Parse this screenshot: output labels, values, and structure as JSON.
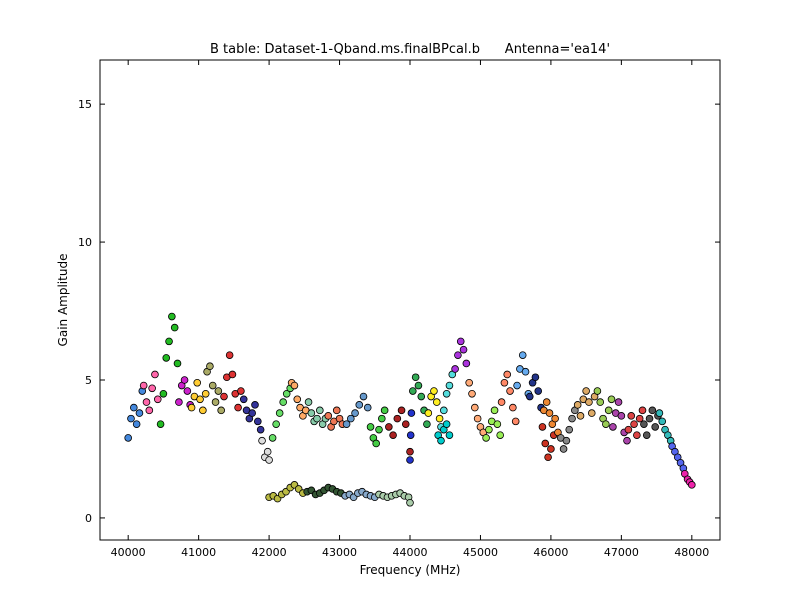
{
  "chart_data": {
    "type": "scatter",
    "title": "B table: Dataset-1-Qband.ms.finalBPcal.b      Antenna='ea14'",
    "xlabel": "Frequency (MHz)",
    "ylabel": "Gain Amplitude",
    "xlim": [
      39600,
      48400
    ],
    "ylim": [
      -0.8,
      16.6
    ],
    "xticks": [
      40000,
      41000,
      42000,
      43000,
      44000,
      45000,
      46000,
      47000,
      48000
    ],
    "yticks": [
      0,
      5,
      10,
      15
    ],
    "grid": false,
    "legend": "none",
    "marker": "circle",
    "marker_edge_color": "#000000",
    "series": [
      {
        "color": "#4488dd",
        "x": [
          40000,
          40040,
          40080,
          40120,
          40160,
          40200
        ],
        "y": [
          2.9,
          3.6,
          4.0,
          3.4,
          3.8,
          4.6
        ]
      },
      {
        "color": "#ff66aa",
        "x": [
          40220,
          40260,
          40300,
          40340,
          40380,
          40420
        ],
        "y": [
          4.8,
          4.2,
          3.9,
          4.7,
          5.2,
          4.3
        ]
      },
      {
        "color": "#22bb22",
        "x": [
          40460,
          40500,
          40540,
          40580,
          40620,
          40660,
          40700
        ],
        "y": [
          3.4,
          4.5,
          5.8,
          6.4,
          7.3,
          6.9,
          5.6
        ]
      },
      {
        "color": "#cc22cc",
        "x": [
          40720,
          40760,
          40800,
          40840,
          40880
        ],
        "y": [
          4.2,
          4.8,
          5.0,
          4.6,
          4.1
        ]
      },
      {
        "color": "#ffcc33",
        "x": [
          40900,
          40940,
          40980,
          41020,
          41060,
          41100
        ],
        "y": [
          4.0,
          4.4,
          4.9,
          4.3,
          3.9,
          4.5
        ]
      },
      {
        "color": "#aaaa66",
        "x": [
          41120,
          41160,
          41200,
          41240,
          41280,
          41320
        ],
        "y": [
          5.3,
          5.5,
          4.8,
          4.2,
          4.6,
          3.9
        ]
      },
      {
        "color": "#dd3333",
        "x": [
          41360,
          41400,
          41440,
          41480,
          41520,
          41560,
          41600
        ],
        "y": [
          4.4,
          5.1,
          5.9,
          5.2,
          4.5,
          4.0,
          4.6
        ]
      },
      {
        "color": "#333399",
        "x": [
          41640,
          41680,
          41720,
          41760,
          41800,
          41840,
          41880
        ],
        "y": [
          4.3,
          3.9,
          3.6,
          3.8,
          4.1,
          3.5,
          3.2
        ]
      },
      {
        "color": "#dddddd",
        "x": [
          41900,
          41940,
          41980,
          42000
        ],
        "y": [
          2.8,
          2.2,
          2.4,
          2.1
        ]
      },
      {
        "color": "#66dd66",
        "x": [
          42050,
          42100,
          42150,
          42200,
          42250,
          42300
        ],
        "y": [
          2.9,
          3.4,
          3.8,
          4.2,
          4.5,
          4.7
        ]
      },
      {
        "color": "#ffaa66",
        "x": [
          42320,
          42360,
          42400,
          42440,
          42480,
          42520
        ],
        "y": [
          4.9,
          4.8,
          4.3,
          4.0,
          3.7,
          3.9
        ]
      },
      {
        "color": "#88ccaa",
        "x": [
          42560,
          42600,
          42640,
          42680,
          42720,
          42760,
          42800
        ],
        "y": [
          4.2,
          3.8,
          3.5,
          3.6,
          3.9,
          3.4,
          3.6
        ]
      },
      {
        "color": "#ee7755",
        "x": [
          42840,
          42880,
          42920,
          42960,
          43000,
          43040
        ],
        "y": [
          3.7,
          3.3,
          3.5,
          3.9,
          3.6,
          3.4
        ]
      },
      {
        "color": "#6699cc",
        "x": [
          43100,
          43160,
          43220,
          43280,
          43340,
          43400
        ],
        "y": [
          3.4,
          3.6,
          3.8,
          4.1,
          4.4,
          4.0
        ]
      },
      {
        "color": "#44cc44",
        "x": [
          43440,
          43480,
          43520,
          43560,
          43600,
          43640
        ],
        "y": [
          3.3,
          2.9,
          2.7,
          3.2,
          3.6,
          3.9
        ]
      },
      {
        "color": "#aa2222",
        "x": [
          43700,
          43760,
          43820,
          43880,
          43940,
          44000
        ],
        "y": [
          3.3,
          3.0,
          3.6,
          3.9,
          3.4,
          2.4
        ]
      },
      {
        "color": "#2233cc",
        "x": [
          44000,
          44010,
          44020
        ],
        "y": [
          2.1,
          3.0,
          3.8
        ]
      },
      {
        "color": "#33aa55",
        "x": [
          44040,
          44080,
          44120,
          44160,
          44200,
          44240
        ],
        "y": [
          4.6,
          5.1,
          4.8,
          4.4,
          3.9,
          3.4
        ]
      },
      {
        "color": "#ffee22",
        "x": [
          44260,
          44300,
          44340,
          44380,
          44420
        ],
        "y": [
          3.8,
          4.4,
          4.6,
          4.2,
          3.6
        ]
      },
      {
        "color": "#55dddd",
        "x": [
          44440,
          44480,
          44520,
          44560,
          44600
        ],
        "y": [
          3.3,
          3.9,
          4.5,
          4.8,
          5.2
        ]
      },
      {
        "color": "#aa33dd",
        "x": [
          44640,
          44680,
          44720,
          44760,
          44800
        ],
        "y": [
          5.4,
          5.9,
          6.4,
          6.1,
          5.6
        ]
      },
      {
        "color": "#ffaa77",
        "x": [
          44840,
          44880,
          44920,
          44960,
          45000,
          45040
        ],
        "y": [
          4.9,
          4.5,
          4.0,
          3.6,
          3.3,
          3.1
        ]
      },
      {
        "color": "#00cccc",
        "x": [
          44400,
          44440,
          44480,
          44520,
          44560
        ],
        "y": [
          3.0,
          2.8,
          3.2,
          3.4,
          3.0
        ]
      },
      {
        "color": "#99ee55",
        "x": [
          45080,
          45120,
          45160,
          45200,
          45240,
          45280
        ],
        "y": [
          2.9,
          3.2,
          3.5,
          3.9,
          3.4,
          3.0
        ]
      },
      {
        "color": "#ff8866",
        "x": [
          45300,
          45340,
          45380,
          45420,
          45460,
          45500
        ],
        "y": [
          4.2,
          4.9,
          5.2,
          4.6,
          4.0,
          3.5
        ]
      },
      {
        "color": "#66aaee",
        "x": [
          45520,
          45560,
          45600,
          45640,
          45680
        ],
        "y": [
          4.8,
          5.4,
          5.9,
          5.3,
          4.5
        ]
      },
      {
        "color": "#223388",
        "x": [
          45700,
          45740,
          45780,
          45820,
          45860
        ],
        "y": [
          4.4,
          4.9,
          5.1,
          4.6,
          4.0
        ]
      },
      {
        "color": "#cc3322",
        "x": [
          45880,
          45920,
          45960,
          46000,
          46040
        ],
        "y": [
          3.3,
          2.7,
          2.2,
          2.5,
          3.0
        ]
      },
      {
        "color": "#ee8833",
        "x": [
          45900,
          45940,
          45980,
          46020,
          46060,
          46100
        ],
        "y": [
          3.9,
          4.2,
          3.8,
          3.4,
          3.6,
          3.1
        ]
      },
      {
        "color": "#888888",
        "x": [
          46140,
          46180,
          46220,
          46260,
          46300,
          46340
        ],
        "y": [
          2.9,
          2.5,
          2.8,
          3.2,
          3.6,
          3.9
        ]
      },
      {
        "color": "#ddaa66",
        "x": [
          46380,
          46420,
          46460,
          46500,
          46540,
          46580,
          46620
        ],
        "y": [
          4.1,
          3.7,
          4.3,
          4.6,
          4.2,
          3.8,
          4.4
        ]
      },
      {
        "color": "#99cc55",
        "x": [
          46660,
          46700,
          46740,
          46780,
          46820,
          46860
        ],
        "y": [
          4.6,
          4.2,
          3.6,
          3.4,
          3.9,
          4.3
        ]
      },
      {
        "color": "#aa44aa",
        "x": [
          46880,
          46920,
          46960,
          47000,
          47040,
          47080
        ],
        "y": [
          3.3,
          3.8,
          4.2,
          3.7,
          3.1,
          2.8
        ]
      },
      {
        "color": "#dd4444",
        "x": [
          47100,
          47140,
          47180,
          47220,
          47260,
          47300
        ],
        "y": [
          3.2,
          3.7,
          3.4,
          3.0,
          3.6,
          3.9
        ]
      },
      {
        "color": "#555555",
        "x": [
          47320,
          47360,
          47400,
          47440,
          47480,
          47520
        ],
        "y": [
          3.4,
          3.0,
          3.6,
          3.9,
          3.3,
          3.7
        ]
      },
      {
        "color": "#33bbbb",
        "x": [
          47540,
          47580,
          47620,
          47660,
          47700
        ],
        "y": [
          3.8,
          3.5,
          3.2,
          3.0,
          2.8
        ]
      },
      {
        "color": "#5566ee",
        "x": [
          47720,
          47760,
          47800,
          47840,
          47880
        ],
        "y": [
          2.6,
          2.4,
          2.2,
          2.0,
          1.8
        ]
      },
      {
        "color": "#ee22aa",
        "x": [
          47900,
          47940,
          47970,
          48000
        ],
        "y": [
          1.6,
          1.4,
          1.3,
          1.2
        ]
      },
      {
        "color": "#bbbb44",
        "x": [
          42000,
          42060,
          42120,
          42180,
          42240,
          42300,
          42360,
          42420,
          42480
        ],
        "y": [
          0.75,
          0.8,
          0.7,
          0.85,
          0.95,
          1.1,
          1.2,
          1.05,
          0.9
        ]
      },
      {
        "color": "#335533",
        "x": [
          42540,
          42600,
          42660,
          42720,
          42780,
          42840,
          42900,
          42960,
          43020
        ],
        "y": [
          0.95,
          1.0,
          0.85,
          0.9,
          1.0,
          1.1,
          1.05,
          0.95,
          0.9
        ]
      },
      {
        "color": "#88aacc",
        "x": [
          43080,
          43140,
          43200,
          43260,
          43320,
          43380,
          43440,
          43500
        ],
        "y": [
          0.8,
          0.85,
          0.75,
          0.9,
          0.95,
          0.85,
          0.8,
          0.75
        ]
      },
      {
        "color": "#aaccaa",
        "x": [
          43560,
          43620,
          43680,
          43740,
          43800,
          43860,
          43920,
          43980,
          44000
        ],
        "y": [
          0.85,
          0.8,
          0.75,
          0.8,
          0.85,
          0.9,
          0.8,
          0.75,
          0.55
        ]
      }
    ]
  }
}
